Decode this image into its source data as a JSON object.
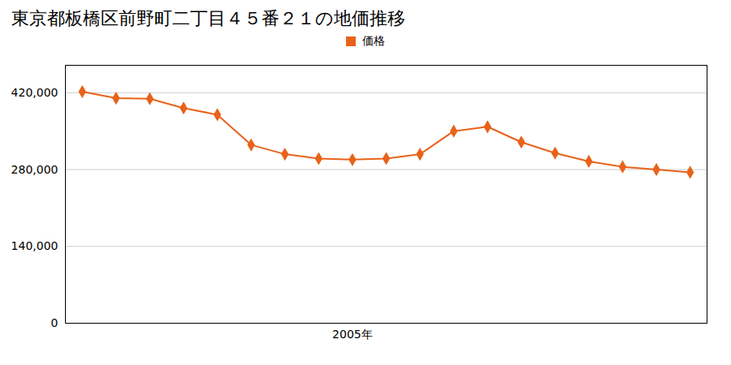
{
  "chart_data": {
    "type": "line",
    "title": "東京都板橋区前野町二丁目４５番２１の地価推移",
    "x": [
      1997,
      1998,
      1999,
      2000,
      2001,
      2002,
      2003,
      2004,
      2005,
      2006,
      2007,
      2008,
      2009,
      2010,
      2011,
      2012,
      2013,
      2014,
      2015
    ],
    "series": [
      {
        "name": "価格",
        "color": "#e8621a",
        "marker": "diamond",
        "values": [
          422000,
          410000,
          409000,
          392000,
          380000,
          325000,
          308000,
          300000,
          298000,
          300000,
          308000,
          350000,
          358000,
          330000,
          310000,
          295000,
          285000,
          280000,
          275000
        ]
      }
    ],
    "xlim": [
      1996.5,
      2015.5
    ],
    "xticks": [
      {
        "value": 2005,
        "label": "2005年"
      }
    ],
    "ylim": [
      0,
      470000
    ],
    "yticks": [
      0,
      {
        "value": 140000,
        "label": "140,000"
      },
      {
        "value": 280000,
        "label": "280,000"
      },
      {
        "value": 420000,
        "label": "420,000"
      }
    ],
    "grid": true,
    "legend": "top"
  }
}
